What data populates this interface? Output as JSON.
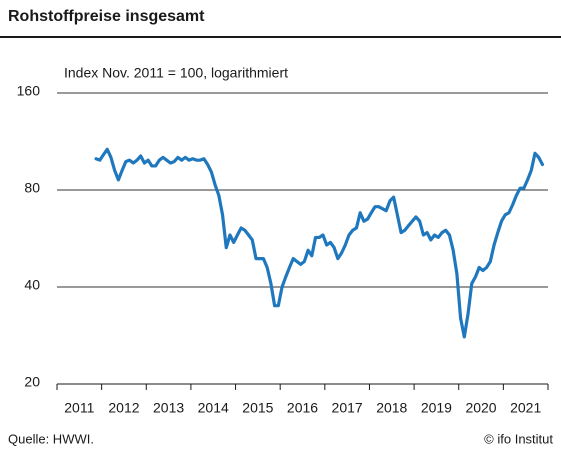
{
  "chart_data": {
    "type": "line",
    "title": "Rohstoffpreise insgesamt",
    "subtitle": "Index Nov. 2011 = 100, logarithmiert",
    "source": "Quelle: HWWI.",
    "credit": "© ifo Institut",
    "color": "#1f78be",
    "log_scale": true,
    "grid": true,
    "ylim": [
      20,
      160
    ],
    "yticks": [
      20,
      40,
      80,
      160
    ],
    "categories": [
      "2011",
      null,
      null,
      null,
      null,
      null,
      null,
      null,
      null,
      null,
      null,
      null,
      "2012",
      null,
      null,
      null,
      null,
      null,
      null,
      null,
      null,
      null,
      null,
      null,
      "2013",
      null,
      null,
      null,
      null,
      null,
      null,
      null,
      null,
      null,
      null,
      null,
      "2014",
      null,
      null,
      null,
      null,
      null,
      null,
      null,
      null,
      null,
      null,
      null,
      "2015",
      null,
      null,
      null,
      null,
      null,
      null,
      null,
      null,
      null,
      null,
      null,
      "2016",
      null,
      null,
      null,
      null,
      null,
      null,
      null,
      null,
      null,
      null,
      null,
      "2017",
      null,
      null,
      null,
      null,
      null,
      null,
      null,
      null,
      null,
      null,
      null,
      "2018",
      null,
      null,
      null,
      null,
      null,
      null,
      null,
      null,
      null,
      null,
      null,
      "2019",
      null,
      null,
      null,
      null,
      null,
      null,
      null,
      null,
      null,
      null,
      null,
      "2020",
      null,
      null,
      null,
      null,
      null,
      null,
      null,
      null,
      null,
      null,
      null,
      "2021",
      null,
      null,
      null,
      null,
      null,
      null,
      null,
      null,
      null,
      null,
      null
    ],
    "values": [
      null,
      null,
      null,
      null,
      null,
      null,
      null,
      null,
      null,
      null,
      100,
      99,
      103,
      107,
      101,
      92,
      86,
      92,
      98,
      99,
      97,
      99,
      102,
      97,
      99,
      95,
      95,
      99,
      101,
      99,
      97,
      98,
      101,
      99,
      101,
      99,
      100,
      99,
      99,
      100,
      96,
      91,
      83,
      77,
      67,
      53,
      58,
      55,
      58,
      61,
      60,
      58,
      56,
      49,
      49,
      49,
      46,
      41,
      35,
      35,
      40,
      43,
      46,
      49,
      48,
      47,
      48,
      52,
      50,
      57,
      57,
      58,
      54,
      55,
      53,
      49,
      51,
      54,
      58,
      60,
      61,
      68,
      64,
      65,
      68,
      71,
      71,
      70,
      69,
      74,
      76,
      67,
      59,
      60,
      62,
      64,
      66,
      64,
      58,
      59,
      56,
      58,
      57,
      59,
      60,
      58,
      52,
      44,
      32,
      28,
      33,
      41,
      43,
      46,
      45,
      46,
      48,
      54,
      59,
      64,
      67,
      68,
      72,
      77,
      81,
      81,
      86,
      92,
      104,
      101,
      96,
      null
    ]
  }
}
